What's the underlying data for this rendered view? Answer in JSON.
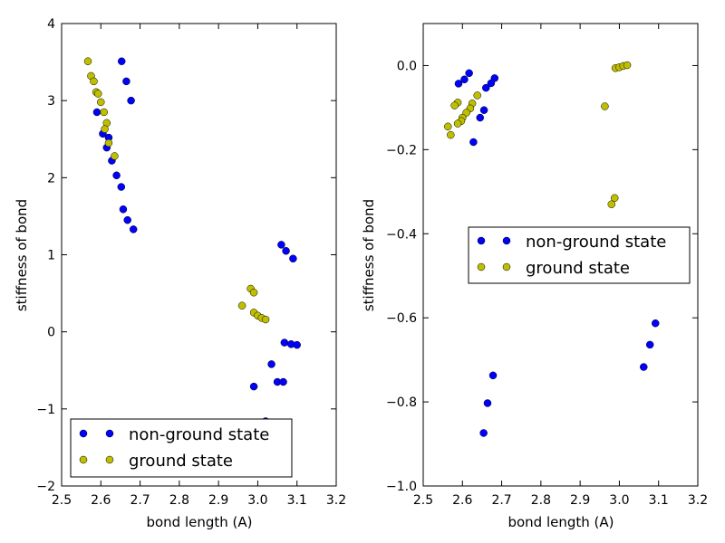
{
  "chart_data": [
    {
      "type": "scatter",
      "xlabel": "bond length (A)",
      "ylabel": "stiffness of bond",
      "xlim": [
        2.5,
        3.2
      ],
      "ylim": [
        -2,
        4
      ],
      "xticks": [
        "2.5",
        "2.6",
        "2.7",
        "2.8",
        "2.9",
        "3.0",
        "3.1",
        "3.2"
      ],
      "yticks": [
        "−2",
        "−1",
        "0",
        "1",
        "2",
        "3",
        "4"
      ],
      "legend_position": "lower-left",
      "series": [
        {
          "name": "non-ground state",
          "color": "#0000ff",
          "points": [
            [
              2.653,
              3.51
            ],
            [
              2.665,
              3.25
            ],
            [
              2.677,
              3.0
            ],
            [
              2.59,
              2.85
            ],
            [
              2.605,
              2.57
            ],
            [
              2.62,
              2.52
            ],
            [
              2.615,
              2.39
            ],
            [
              2.628,
              2.22
            ],
            [
              2.64,
              2.03
            ],
            [
              2.652,
              1.88
            ],
            [
              2.657,
              1.59
            ],
            [
              2.668,
              1.45
            ],
            [
              2.683,
              1.33
            ],
            [
              3.06,
              1.13
            ],
            [
              3.072,
              1.05
            ],
            [
              3.09,
              0.95
            ],
            [
              3.068,
              -0.14
            ],
            [
              3.085,
              -0.16
            ],
            [
              3.1,
              -0.17
            ],
            [
              3.035,
              -0.42
            ],
            [
              3.05,
              -0.65
            ],
            [
              3.065,
              -0.65
            ],
            [
              2.99,
              -0.71
            ],
            [
              3.02,
              -1.16
            ]
          ]
        },
        {
          "name": "ground state",
          "color": "#bfbf00",
          "points": [
            [
              2.567,
              3.51
            ],
            [
              2.575,
              3.32
            ],
            [
              2.582,
              3.25
            ],
            [
              2.588,
              3.11
            ],
            [
              2.593,
              3.09
            ],
            [
              2.6,
              2.98
            ],
            [
              2.608,
              2.85
            ],
            [
              2.615,
              2.71
            ],
            [
              2.61,
              2.63
            ],
            [
              2.62,
              2.45
            ],
            [
              2.635,
              2.28
            ],
            [
              2.96,
              0.34
            ],
            [
              2.982,
              0.56
            ],
            [
              2.99,
              0.51
            ],
            [
              2.99,
              0.25
            ],
            [
              3.0,
              0.21
            ],
            [
              3.01,
              0.18
            ],
            [
              3.02,
              0.16
            ]
          ]
        }
      ]
    },
    {
      "type": "scatter",
      "xlabel": "bond length (A)",
      "ylabel": "stiffness of bond",
      "xlim": [
        2.5,
        3.2
      ],
      "ylim": [
        -1.0,
        0.1
      ],
      "xticks": [
        "2.5",
        "2.6",
        "2.7",
        "2.8",
        "2.9",
        "3.0",
        "3.1",
        "3.2"
      ],
      "yticks": [
        "−1.0",
        "−0.8",
        "−0.6",
        "−0.4",
        "−0.2",
        "0.0"
      ],
      "legend_position": "center-right",
      "series": [
        {
          "name": "non-ground state",
          "color": "#0000ff",
          "points": [
            [
              2.617,
              -0.018
            ],
            [
              2.605,
              -0.033
            ],
            [
              2.59,
              -0.043
            ],
            [
              2.682,
              -0.03
            ],
            [
              2.673,
              -0.042
            ],
            [
              2.66,
              -0.053
            ],
            [
              2.655,
              -0.106
            ],
            [
              2.645,
              -0.124
            ],
            [
              2.628,
              -0.182
            ],
            [
              2.678,
              -0.737
            ],
            [
              2.664,
              -0.803
            ],
            [
              2.654,
              -0.874
            ],
            [
              3.092,
              -0.613
            ],
            [
              3.078,
              -0.664
            ],
            [
              3.062,
              -0.717
            ]
          ]
        },
        {
          "name": "ground state",
          "color": "#bfbf00",
          "points": [
            [
              2.588,
              -0.088
            ],
            [
              2.58,
              -0.095
            ],
            [
              2.625,
              -0.09
            ],
            [
              2.638,
              -0.071
            ],
            [
              2.62,
              -0.102
            ],
            [
              2.61,
              -0.112
            ],
            [
              2.6,
              -0.124
            ],
            [
              2.597,
              -0.132
            ],
            [
              2.588,
              -0.138
            ],
            [
              2.563,
              -0.145
            ],
            [
              2.57,
              -0.165
            ],
            [
              2.963,
              -0.097
            ],
            [
              2.99,
              -0.006
            ],
            [
              3.0,
              -0.004
            ],
            [
              3.01,
              -0.001
            ],
            [
              3.02,
              0.001
            ],
            [
              2.988,
              -0.315
            ],
            [
              2.98,
              -0.33
            ]
          ]
        }
      ]
    }
  ]
}
